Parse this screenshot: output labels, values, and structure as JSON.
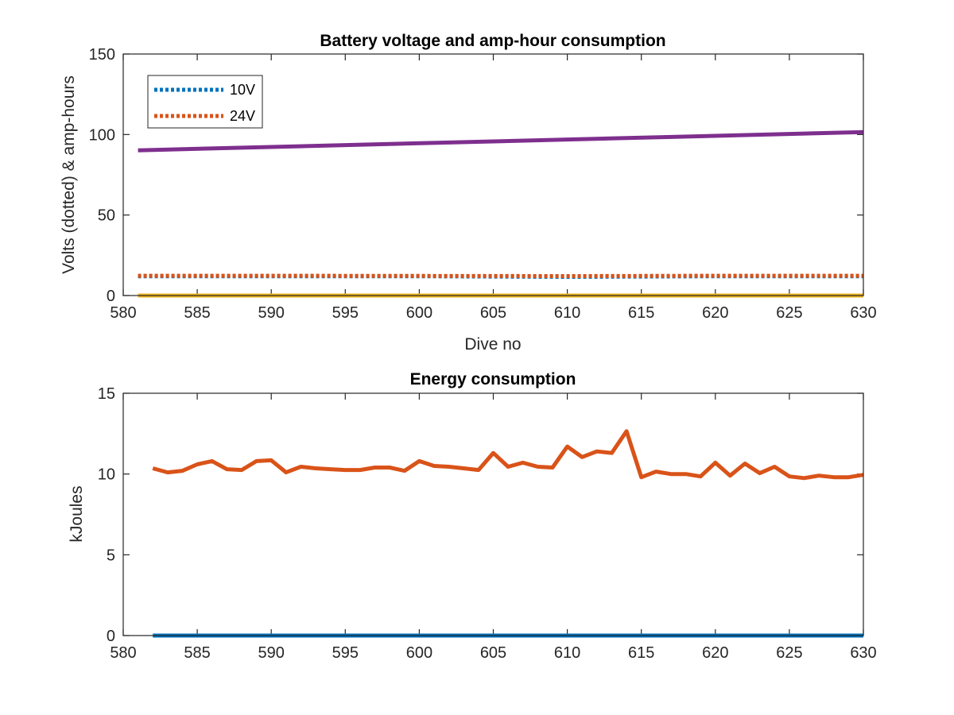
{
  "chart_data": [
    {
      "type": "line",
      "title": "Battery voltage and amp-hour consumption",
      "xlabel": "Dive no",
      "ylabel": "Volts (dotted) & amp-hours",
      "xlim": [
        580,
        630
      ],
      "ylim": [
        0,
        150
      ],
      "xticks": [
        580,
        585,
        590,
        595,
        600,
        605,
        610,
        615,
        620,
        625,
        630
      ],
      "yticks": [
        0,
        50,
        100,
        150
      ],
      "grid": false,
      "legend": {
        "placement": "top-left"
      },
      "series": [
        {
          "name": "10V",
          "color": "#0072BD",
          "style": "dotted",
          "x": [
            581,
            590,
            600,
            610,
            620,
            630
          ],
          "y": [
            12,
            12,
            12,
            11.6,
            12,
            12
          ]
        },
        {
          "name": "24V",
          "color": "#D95319",
          "style": "dotted",
          "x": [
            581,
            590,
            600,
            610,
            620,
            630
          ],
          "y": [
            12.3,
            12.3,
            12.2,
            12.1,
            12.3,
            12.3
          ]
        },
        {
          "name": "",
          "color": "#EDB120",
          "style": "solid",
          "x": [
            581,
            630
          ],
          "y": [
            0,
            0
          ]
        },
        {
          "name": "",
          "color": "#7E2F8E",
          "style": "solid",
          "x": [
            581,
            630
          ],
          "y": [
            90.2,
            101.5
          ]
        }
      ]
    },
    {
      "type": "line",
      "title": "Energy consumption",
      "xlabel": "",
      "ylabel": "kJoules",
      "xlim": [
        580,
        630
      ],
      "ylim": [
        0,
        15
      ],
      "xticks": [
        580,
        585,
        590,
        595,
        600,
        605,
        610,
        615,
        620,
        625,
        630
      ],
      "yticks": [
        0,
        5,
        10,
        15
      ],
      "grid": false,
      "series": [
        {
          "name": "",
          "color": "#0072BD",
          "style": "solid",
          "x": [
            582,
            630
          ],
          "y": [
            0,
            0
          ]
        },
        {
          "name": "",
          "color": "#D95319",
          "style": "solid",
          "x": [
            582,
            583,
            584,
            585,
            586,
            587,
            588,
            589,
            590,
            591,
            592,
            593,
            594,
            595,
            596,
            597,
            598,
            599,
            600,
            601,
            602,
            603,
            604,
            605,
            606,
            607,
            608,
            609,
            610,
            611,
            612,
            613,
            614,
            615,
            616,
            617,
            618,
            619,
            620,
            621,
            622,
            623,
            624,
            625,
            626,
            627,
            628,
            629,
            630
          ],
          "y": [
            10.35,
            10.1,
            10.2,
            10.6,
            10.8,
            10.3,
            10.25,
            10.8,
            10.85,
            10.1,
            10.45,
            10.35,
            10.3,
            10.25,
            10.25,
            10.4,
            10.4,
            10.2,
            10.8,
            10.5,
            10.45,
            10.35,
            10.25,
            11.3,
            10.45,
            10.7,
            10.45,
            10.4,
            11.7,
            11.05,
            11.4,
            11.3,
            12.65,
            9.8,
            10.15,
            10.0,
            10.0,
            9.85,
            10.7,
            9.9,
            10.65,
            10.05,
            10.45,
            9.85,
            9.75,
            9.9,
            9.8,
            9.8,
            9.95
          ]
        }
      ]
    }
  ]
}
